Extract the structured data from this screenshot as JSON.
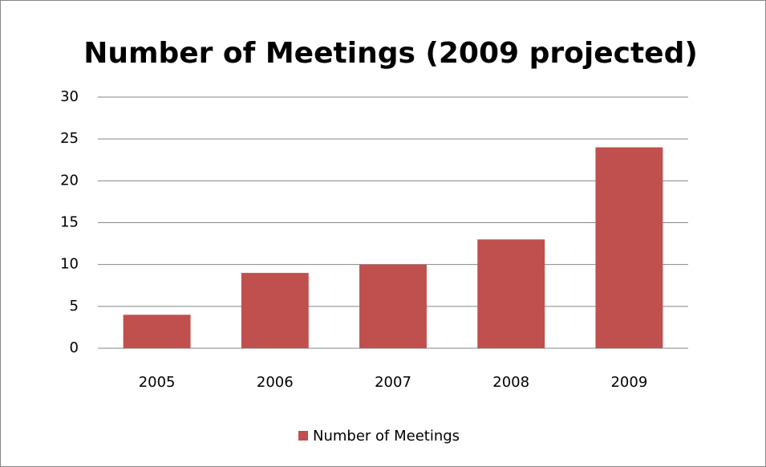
{
  "chart_data": {
    "type": "bar",
    "title": "Number of Meetings (2009 projected)",
    "categories": [
      "2005",
      "2006",
      "2007",
      "2008",
      "2009"
    ],
    "series": [
      {
        "name": "Number of Meetings",
        "color": "#c0504d",
        "values": [
          4,
          9,
          10,
          13,
          24
        ]
      }
    ],
    "ylim": [
      0,
      30
    ],
    "yticks": [
      0,
      5,
      10,
      15,
      20,
      25,
      30
    ],
    "grid": true,
    "legend": "bottom"
  }
}
